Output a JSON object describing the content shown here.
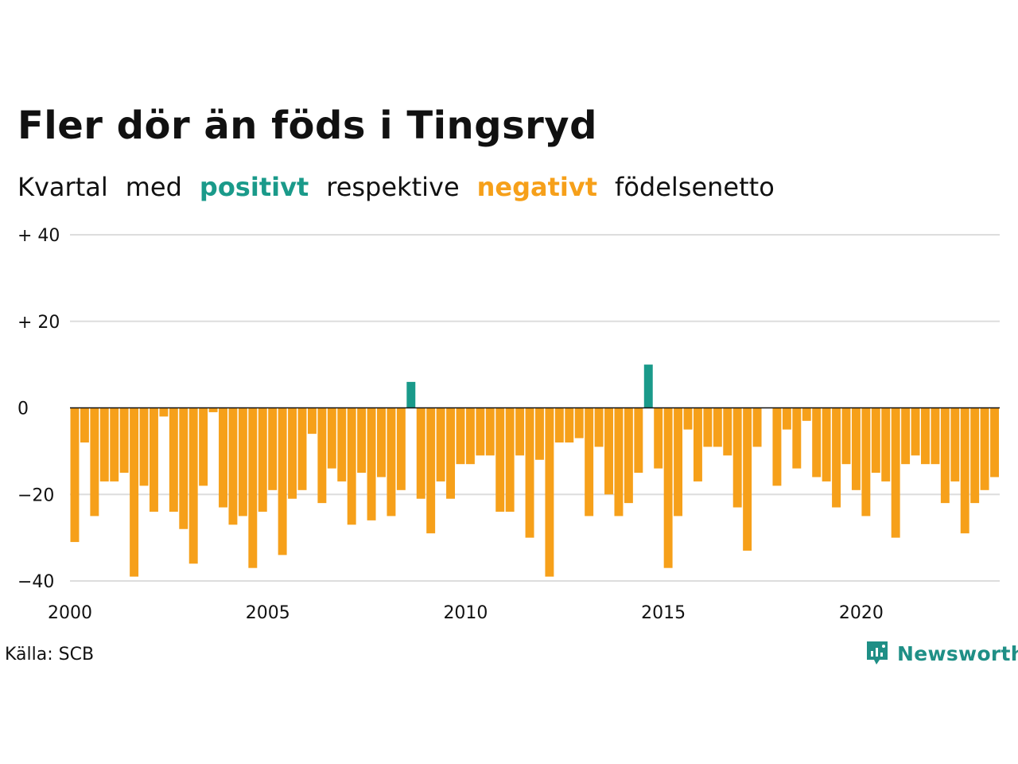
{
  "title": "Fler dör än föds i Tingsryd",
  "subtitle": {
    "part1": "Kvartal",
    "part2": "med",
    "positive": "positivt",
    "part3": "respektive",
    "negative": "negativt",
    "part4": "födelsenetto"
  },
  "colors": {
    "positive": "#1a9a8a",
    "negative": "#f6a01a",
    "grid": "#dddddd",
    "brand": "#1f8f86"
  },
  "source": "Källa: SCB",
  "brand": {
    "name": "Newsworthy",
    "icon": "newsworthy-logo-icon"
  },
  "chart_data": {
    "type": "bar",
    "x_start": "2000 Q1",
    "frequency": "quarterly",
    "ylim": [
      -40,
      40
    ],
    "y_ticks": [
      {
        "value": 40,
        "label": "+ 40"
      },
      {
        "value": 20,
        "label": "+ 20"
      },
      {
        "value": 0,
        "label": "0"
      },
      {
        "value": -20,
        "label": "−20"
      },
      {
        "value": -40,
        "label": "−40"
      }
    ],
    "x_ticks": [
      "2000",
      "2005",
      "2010",
      "2015",
      "2020"
    ],
    "values": [
      -31,
      -8,
      -25,
      -17,
      -17,
      -15,
      -39,
      -18,
      -24,
      -2,
      -24,
      -28,
      -36,
      -18,
      -1,
      -23,
      -27,
      -25,
      -37,
      -24,
      -19,
      -34,
      -21,
      -19,
      -6,
      -22,
      -14,
      -17,
      -27,
      -15,
      -26,
      -16,
      -25,
      -19,
      6,
      -21,
      -29,
      -17,
      -21,
      -13,
      -13,
      -11,
      -11,
      -24,
      -24,
      -11,
      -30,
      -12,
      -39,
      -8,
      -8,
      -7,
      -25,
      -9,
      -20,
      -25,
      -22,
      -15,
      10,
      -14,
      -37,
      -25,
      -5,
      -17,
      -9,
      -9,
      -11,
      -23,
      -33,
      -9,
      0,
      -18,
      -5,
      -14,
      -3,
      -16,
      -17,
      -23,
      -13,
      -19,
      -25,
      -15,
      -17,
      -30,
      -13,
      -11,
      -13,
      -13,
      -22,
      -17,
      -29,
      -22,
      -19,
      -16
    ]
  }
}
